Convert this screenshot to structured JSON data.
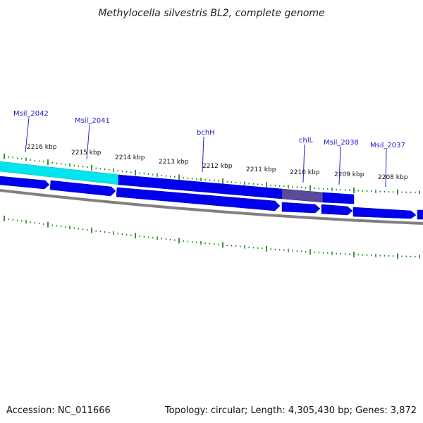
{
  "title": "Methylocella silvestris BL2, complete genome",
  "footer": {
    "accession": "Accession: NC_011666",
    "summary": "Topology: circular; Length: 4,305,430 bp; Genes: 3,872"
  },
  "colors": {
    "gene_fill": "#0000ee",
    "gene_dark": "#0000aa",
    "highlight_cyan": "#00e5ee",
    "highlight_purple": "#5a4a9a",
    "backbone": "#808080",
    "tick_green": "#0a7a0a",
    "label_line": "#2222cc"
  },
  "kbp_labels": [
    "2216 kbp",
    "2215 kbp",
    "2214 kbp",
    "2213 kbp",
    "2212 kbp",
    "2211 kbp",
    "2210 kbp",
    "2209 kbp",
    "2208 kbp"
  ],
  "gene_labels": [
    "Msil_2042",
    "Msil_2041",
    "bchH",
    "chlL",
    "Msil_2038",
    "Msil_2037"
  ]
}
